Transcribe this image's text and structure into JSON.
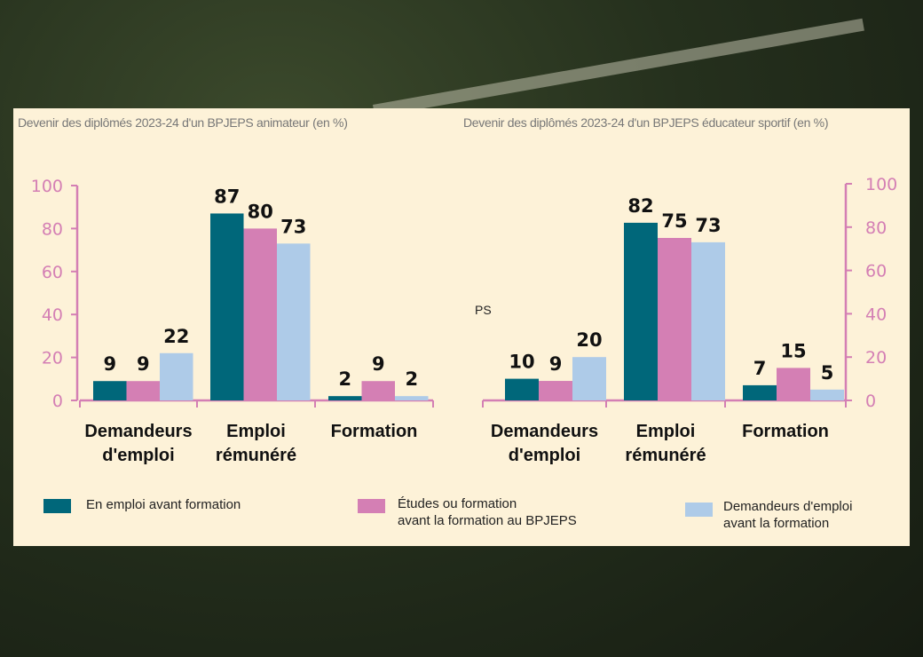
{
  "colors": {
    "teal": "#00677a",
    "pink": "#d47fb4",
    "lightblue": "#aecbe8",
    "axis": "#d47fb4",
    "panel": "#fdf2d8"
  },
  "stray_text": "PS",
  "chart_data": [
    {
      "type": "bar",
      "title": "Devenir des diplômés 2023-24 d'un BPJEPS animateur (en %)",
      "categories": [
        "Demandeurs d'emploi",
        "Emploi rémunéré",
        "Formation"
      ],
      "category_lines": [
        [
          "Demandeurs",
          "d'emploi"
        ],
        [
          "Emploi",
          "rémunéré"
        ],
        [
          "Formation"
        ]
      ],
      "ylim": [
        0,
        100
      ],
      "yticks": [
        0,
        20,
        40,
        60,
        80,
        100
      ],
      "axis_side": "left",
      "series": [
        {
          "name": "En emploi avant formation",
          "values": [
            9,
            87,
            2
          ]
        },
        {
          "name": "Études ou formation avant la formation au BPJEPS",
          "values": [
            9,
            80,
            9
          ]
        },
        {
          "name": "Demandeurs d'emploi avant la formation",
          "values": [
            22,
            73,
            2
          ]
        }
      ]
    },
    {
      "type": "bar",
      "title": "Devenir des diplômés 2023-24 d'un BPJEPS éducateur sportif (en %)",
      "categories": [
        "Demandeurs d'emploi",
        "Emploi rémunéré",
        "Formation"
      ],
      "category_lines": [
        [
          "Demandeurs",
          "d'emploi"
        ],
        [
          "Emploi",
          "rémunéré"
        ],
        [
          "Formation"
        ]
      ],
      "ylim": [
        0,
        100
      ],
      "yticks": [
        0,
        20,
        40,
        60,
        80,
        100
      ],
      "axis_side": "right",
      "series": [
        {
          "name": "En emploi avant formation",
          "values": [
            10,
            82,
            7
          ]
        },
        {
          "name": "Études ou formation avant la formation au BPJEPS",
          "values": [
            9,
            75,
            15
          ]
        },
        {
          "name": "Demandeurs d'emploi avant la formation",
          "values": [
            20,
            73,
            5
          ]
        }
      ]
    }
  ],
  "legend": [
    {
      "lines": [
        "En emploi avant formation"
      ]
    },
    {
      "lines": [
        "Études ou formation",
        "avant la formation au BPJEPS"
      ]
    },
    {
      "lines": [
        "Demandeurs d'emploi",
        "avant la formation"
      ]
    }
  ]
}
